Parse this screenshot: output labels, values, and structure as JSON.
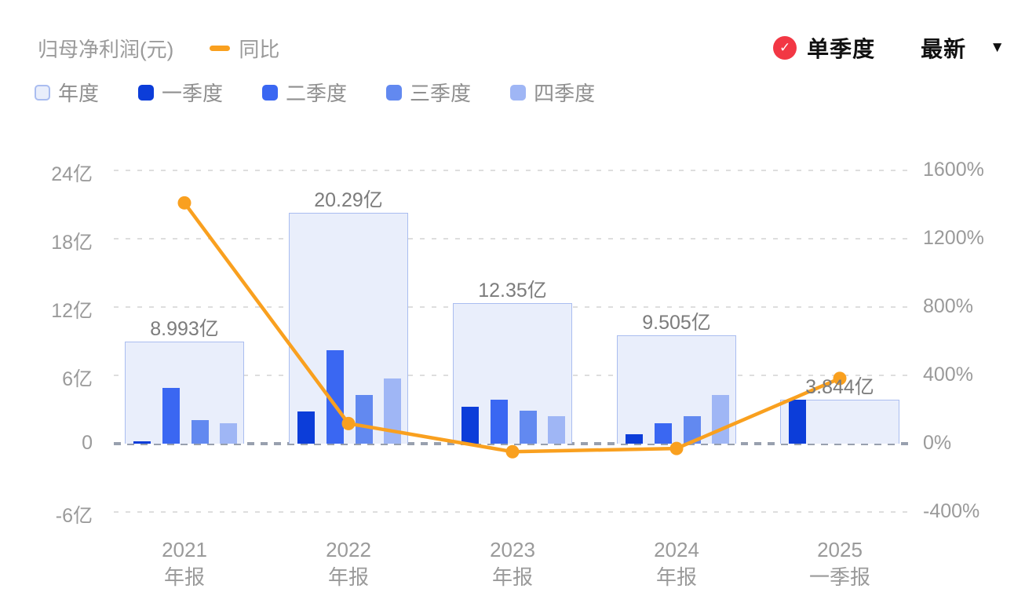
{
  "header": {
    "title": "归母净利润(元)",
    "yoy_legend": "同比",
    "quarter_mode": "单季度",
    "latest_label": "最新",
    "icons": {
      "check": "✓",
      "caret_down": "▼"
    },
    "colors": {
      "yoy_line": "#f9a01f",
      "badge_red": "#f23744",
      "text_dark": "#111111",
      "text_gray": "#9a9a9a"
    }
  },
  "legend": {
    "items": [
      {
        "key": "annual",
        "label": "年度",
        "fill": "#e9eefb",
        "border": "#aabdf0"
      },
      {
        "key": "q1",
        "label": "一季度",
        "fill": "#0c3dd9"
      },
      {
        "key": "q2",
        "label": "二季度",
        "fill": "#3a67f2"
      },
      {
        "key": "q3",
        "label": "三季度",
        "fill": "#6289f0"
      },
      {
        "key": "q4",
        "label": "四季度",
        "fill": "#9fb6f5"
      }
    ]
  },
  "chart_data": {
    "type": "bar",
    "subtype": "grouped-annual-and-quarter-bars-with-yoy-line",
    "title": "归母净利润(元)",
    "unit": "亿",
    "legend_position": "top-left",
    "grid": true,
    "categories": [
      {
        "year": "2021",
        "period": "年报"
      },
      {
        "year": "2022",
        "period": "年报"
      },
      {
        "year": "2023",
        "period": "年报"
      },
      {
        "year": "2024",
        "period": "年报"
      },
      {
        "year": "2025",
        "period": "一季报"
      }
    ],
    "annual": {
      "name": "年度",
      "values": [
        8.993,
        20.29,
        12.35,
        9.505,
        3.844
      ],
      "labels": [
        "8.993亿",
        "20.29亿",
        "12.35亿",
        "9.505亿",
        "3.844亿"
      ]
    },
    "quarter_series": [
      {
        "name": "一季度",
        "values": [
          0.2,
          2.8,
          3.25,
          0.85,
          3.844
        ]
      },
      {
        "name": "二季度",
        "values": [
          4.9,
          8.2,
          3.85,
          1.8,
          null
        ]
      },
      {
        "name": "三季度",
        "values": [
          2.1,
          4.3,
          2.9,
          2.4,
          null
        ]
      },
      {
        "name": "四季度",
        "values": [
          1.8,
          5.7,
          2.4,
          4.3,
          null
        ]
      }
    ],
    "yoy_line": {
      "name": "同比",
      "values_pct": [
        1410,
        118,
        -47,
        -28,
        382
      ]
    },
    "left_axis": {
      "unit": "亿",
      "ticks": [
        "24亿",
        "18亿",
        "12亿",
        "6亿",
        "0",
        "-6亿"
      ],
      "values": [
        24,
        18,
        12,
        6,
        0,
        -6
      ]
    },
    "right_axis": {
      "unit": "%",
      "ticks": [
        "1600%",
        "1200%",
        "800%",
        "400%",
        "0%",
        "-400%"
      ],
      "values": [
        1600,
        1200,
        800,
        400,
        0,
        -400
      ]
    }
  }
}
